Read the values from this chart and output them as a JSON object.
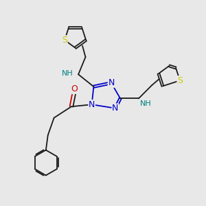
{
  "bg_color": "#e8e8e8",
  "bond_color": "#1a1a1a",
  "nitrogen_color": "#0000cc",
  "oxygen_color": "#cc0000",
  "sulfur_color": "#cccc00",
  "nh_color": "#008080",
  "line_width": 1.3,
  "figsize": [
    3.0,
    3.0
  ],
  "dpi": 100,
  "xlim": [
    0,
    10
  ],
  "ylim": [
    0,
    10
  ]
}
